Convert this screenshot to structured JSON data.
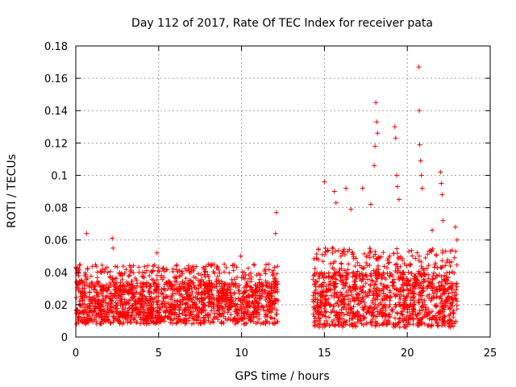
{
  "chart_data": {
    "type": "scatter",
    "title": "Day 112 of 2017, Rate Of TEC Index for receiver pata",
    "xlabel": "GPS time / hours",
    "ylabel": "ROTI / TECUs",
    "xlim": [
      0,
      25
    ],
    "ylim": [
      0,
      0.18
    ],
    "x_ticks": [
      "0",
      "5",
      "10",
      "15",
      "20",
      "25"
    ],
    "y_ticks": [
      "0",
      "0.02",
      "0.04",
      "0.06",
      "0.08",
      "0.1",
      "0.12",
      "0.14",
      "0.16",
      "0.18"
    ],
    "grid": true,
    "marker": "+",
    "color": "#ff0000",
    "segments": [
      {
        "x_start": 0.0,
        "x_end": 12.2,
        "base_min": 0.008,
        "base_max": 0.034,
        "upper_max": 0.045
      },
      {
        "x_start": 14.3,
        "x_end": 23.0,
        "base_min": 0.006,
        "base_max": 0.04,
        "upper_max": 0.055
      }
    ],
    "peaks": [
      {
        "x": 0.65,
        "y": 0.064
      },
      {
        "x": 2.2,
        "y": 0.061
      },
      {
        "x": 2.25,
        "y": 0.055
      },
      {
        "x": 4.9,
        "y": 0.052
      },
      {
        "x": 9.95,
        "y": 0.05
      },
      {
        "x": 12.1,
        "y": 0.077
      },
      {
        "x": 12.05,
        "y": 0.064
      },
      {
        "x": 15.0,
        "y": 0.096
      },
      {
        "x": 15.6,
        "y": 0.09
      },
      {
        "x": 15.7,
        "y": 0.083
      },
      {
        "x": 16.3,
        "y": 0.092
      },
      {
        "x": 16.6,
        "y": 0.079
      },
      {
        "x": 17.3,
        "y": 0.092
      },
      {
        "x": 17.8,
        "y": 0.082
      },
      {
        "x": 18.0,
        "y": 0.106
      },
      {
        "x": 18.1,
        "y": 0.145
      },
      {
        "x": 18.15,
        "y": 0.133
      },
      {
        "x": 18.2,
        "y": 0.126
      },
      {
        "x": 18.05,
        "y": 0.118
      },
      {
        "x": 19.25,
        "y": 0.13
      },
      {
        "x": 19.3,
        "y": 0.123
      },
      {
        "x": 19.35,
        "y": 0.1
      },
      {
        "x": 19.4,
        "y": 0.093
      },
      {
        "x": 19.5,
        "y": 0.085
      },
      {
        "x": 20.7,
        "y": 0.167
      },
      {
        "x": 20.72,
        "y": 0.14
      },
      {
        "x": 20.75,
        "y": 0.119
      },
      {
        "x": 20.8,
        "y": 0.109
      },
      {
        "x": 20.85,
        "y": 0.1
      },
      {
        "x": 20.9,
        "y": 0.092
      },
      {
        "x": 21.5,
        "y": 0.066
      },
      {
        "x": 22.0,
        "y": 0.102
      },
      {
        "x": 22.05,
        "y": 0.095
      },
      {
        "x": 22.1,
        "y": 0.088
      },
      {
        "x": 22.15,
        "y": 0.072
      },
      {
        "x": 22.9,
        "y": 0.068
      },
      {
        "x": 23.0,
        "y": 0.06
      }
    ]
  }
}
